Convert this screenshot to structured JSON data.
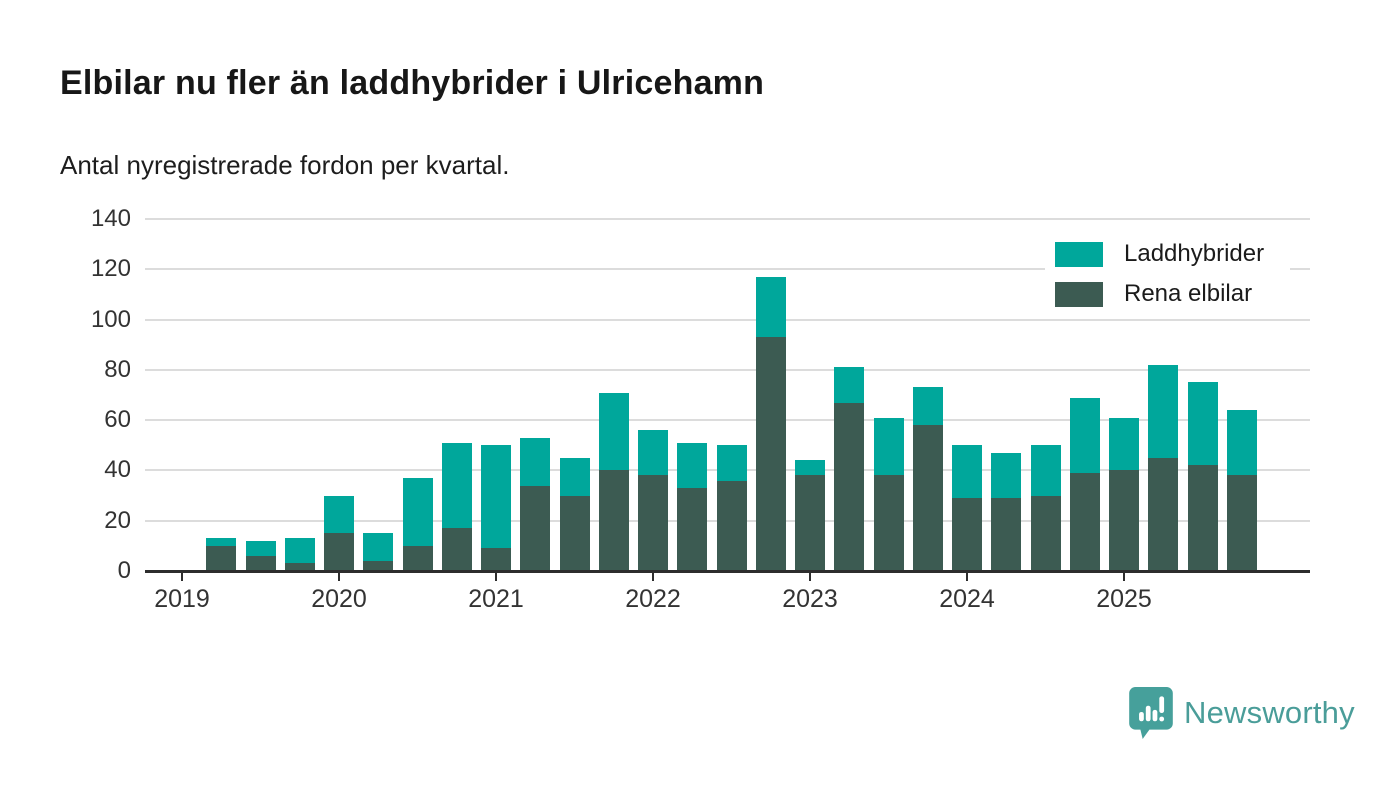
{
  "header": {
    "title": "Elbilar nu fler än laddhybrider i Ulricehamn",
    "subtitle": "Antal nyregistrerade fordon per kvartal."
  },
  "legend": {
    "items": [
      {
        "label": "Laddhybrider",
        "color": "#00a79b"
      },
      {
        "label": "Rena elbilar",
        "color": "#3c5b52"
      }
    ]
  },
  "footer": {
    "brand": "Newsworthy",
    "brand_color": "#4a9d99"
  },
  "colors": {
    "laddhybrider": "#00a79b",
    "rena_elbilar": "#3c5b52",
    "gridline": "#dcdcdc",
    "axis": "#2d2d2d",
    "tick_label": "#333333"
  },
  "chart_data": {
    "type": "bar",
    "stacked": true,
    "title": "Elbilar nu fler än laddhybrider i Ulricehamn",
    "subtitle": "Antal nyregistrerade fordon per kvartal.",
    "xlabel": "",
    "ylabel": "",
    "ylim": [
      0,
      140
    ],
    "yticks": [
      0,
      20,
      40,
      60,
      80,
      100,
      120,
      140
    ],
    "grid": true,
    "legend_position": "top-right",
    "categories": [
      "2019Q1",
      "2019Q2",
      "2019Q3",
      "2019Q4",
      "2020Q1",
      "2020Q2",
      "2020Q3",
      "2020Q4",
      "2021Q1",
      "2021Q2",
      "2021Q3",
      "2021Q4",
      "2022Q1",
      "2022Q2",
      "2022Q3",
      "2022Q4",
      "2023Q1",
      "2023Q2",
      "2023Q3",
      "2023Q4",
      "2024Q1",
      "2024Q2",
      "2024Q3",
      "2024Q4",
      "2025Q1",
      "2025Q2",
      "2025Q3",
      "2025Q4"
    ],
    "xticks": [
      "2019",
      "2020",
      "2021",
      "2022",
      "2023",
      "2024",
      "2025"
    ],
    "series": [
      {
        "name": "Rena elbilar",
        "color": "#3c5b52",
        "values": [
          0,
          10,
          6,
          3,
          15,
          4,
          10,
          17,
          9,
          34,
          30,
          40,
          38,
          33,
          36,
          93,
          38,
          67,
          38,
          58,
          29,
          29,
          30,
          39,
          40,
          45,
          42,
          38
        ]
      },
      {
        "name": "Laddhybrider",
        "color": "#00a79b",
        "values": [
          0,
          3,
          6,
          10,
          15,
          11,
          27,
          34,
          41,
          19,
          15,
          31,
          18,
          18,
          14,
          24,
          6,
          14,
          23,
          15,
          21,
          18,
          20,
          30,
          21,
          37,
          33,
          26
        ]
      }
    ]
  }
}
